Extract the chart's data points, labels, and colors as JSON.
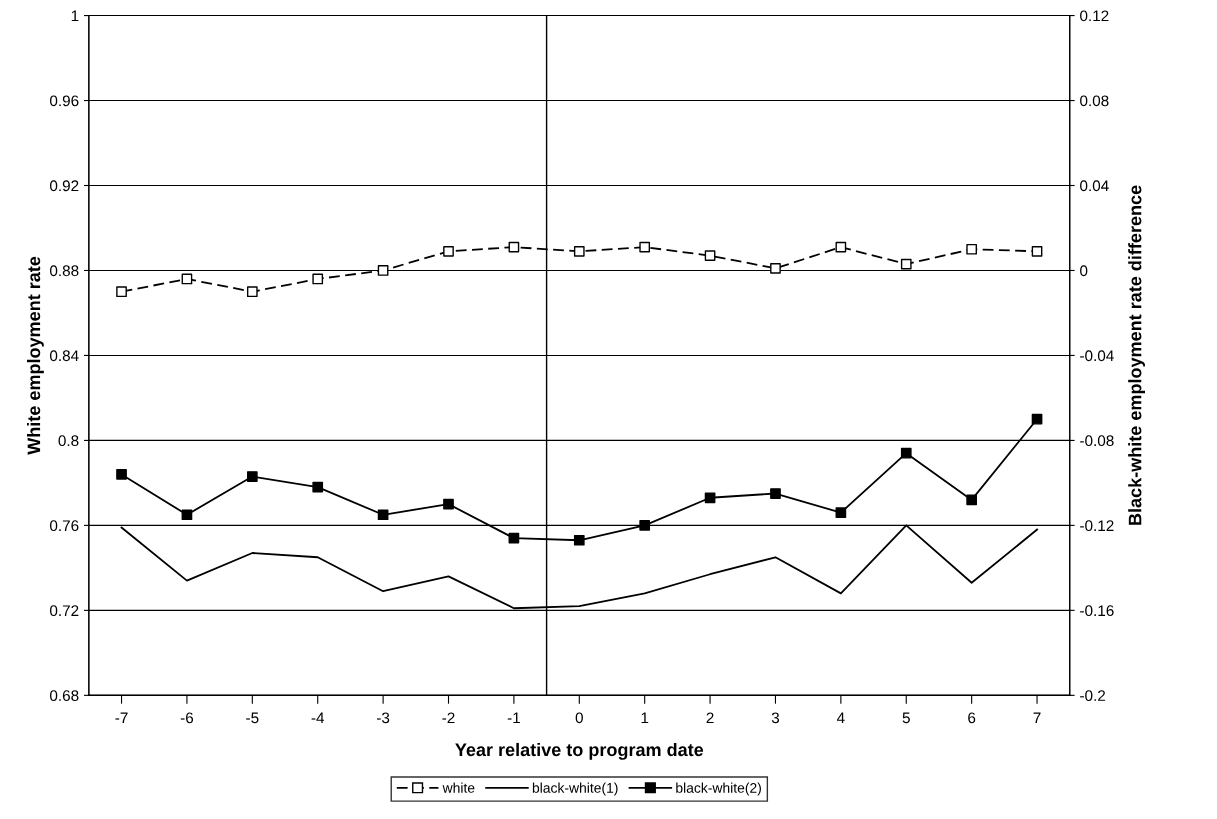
{
  "chart_data": {
    "type": "line",
    "xlabel": "Year relative to program date",
    "ylabel": "White employment rate",
    "y2label": "Black-white employment rate difference",
    "x": [
      -7,
      -6,
      -5,
      -4,
      -3,
      -2,
      -1,
      0,
      1,
      2,
      3,
      4,
      5,
      6,
      7
    ],
    "xlim": [
      -7.5,
      7.5
    ],
    "xticks": [
      -7,
      -6,
      -5,
      -4,
      -3,
      -2,
      -1,
      0,
      1,
      2,
      3,
      4,
      5,
      6,
      7
    ],
    "ylim": [
      0.68,
      1
    ],
    "yticks": [
      0.68,
      0.72,
      0.76,
      0.8,
      0.84,
      0.88,
      0.92,
      0.96,
      1
    ],
    "y2lim": [
      -0.2,
      0.12
    ],
    "y2ticks": [
      -0.2,
      -0.16,
      -0.12,
      -0.08,
      -0.04,
      0,
      0.04,
      0.08,
      0.12
    ],
    "grid": "y",
    "legend": "bottom",
    "ref_lines": [
      {
        "axis": "x",
        "value": -0.5,
        "color": "#000000"
      }
    ],
    "series": [
      {
        "name": "white",
        "color": "#000000",
        "line_style": "dashed",
        "marker": "square",
        "values": [
          0.87,
          0.876,
          0.87,
          0.876,
          0.88,
          0.889,
          0.891,
          0.889,
          0.891,
          0.887,
          0.881,
          0.891,
          0.883,
          0.89,
          0.889
        ]
      },
      {
        "name": "black-white(1)",
        "color": "#000000",
        "line_style": "solid",
        "marker": "none",
        "axis": "y2",
        "values": [
          -0.121,
          -0.146,
          -0.133,
          -0.135,
          -0.151,
          -0.144,
          -0.159,
          -0.158,
          -0.152,
          -0.143,
          -0.135,
          -0.152,
          -0.12,
          -0.147,
          -0.122
        ]
      },
      {
        "name": "black-white(2)",
        "color": "#000000",
        "line_style": "solid",
        "marker": "square",
        "axis": "y2",
        "values": [
          -0.096,
          -0.115,
          -0.097,
          -0.102,
          -0.115,
          -0.11,
          -0.126,
          -0.127,
          -0.12,
          -0.107,
          -0.105,
          -0.114,
          -0.086,
          -0.108,
          -0.07
        ]
      }
    ]
  }
}
